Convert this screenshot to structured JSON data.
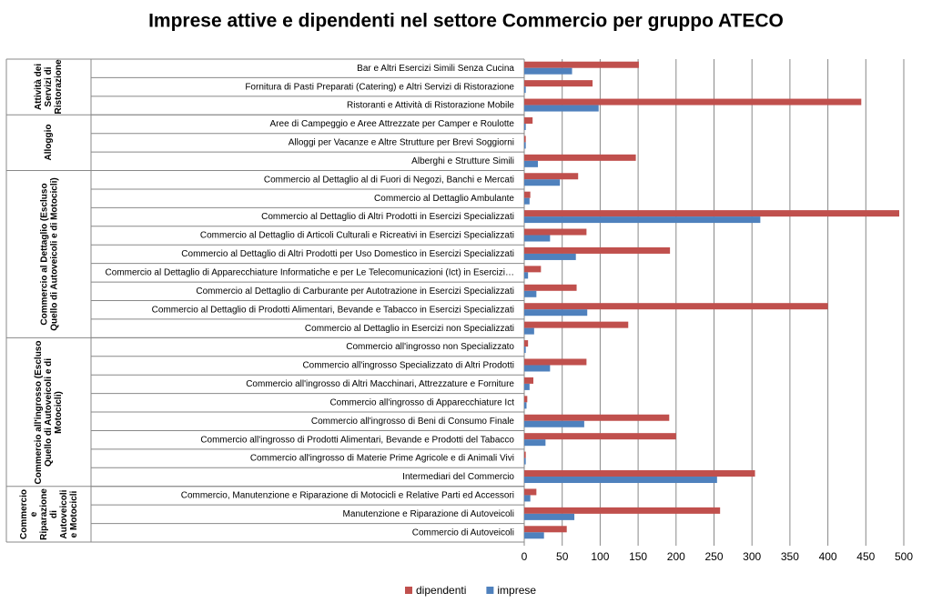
{
  "chart_data": {
    "type": "grouped-hbar",
    "title": "Imprese attive e dipendenti nel settore Commercio per gruppo ATECO",
    "categories": [
      "Bar e Altri Esercizi Simili Senza Cucina",
      "Fornitura di Pasti Preparati (Catering) e Altri Servizi di Ristorazione",
      "Ristoranti e Attività di Ristorazione Mobile",
      "Aree di Campeggio e Aree Attrezzate per Camper e Roulotte",
      "Alloggi per Vacanze e Altre Strutture per Brevi Soggiorni",
      "Alberghi e Strutture Simili",
      "Commercio al Dettaglio al di Fuori di Negozi, Banchi e Mercati",
      "Commercio al Dettaglio Ambulante",
      "Commercio al Dettaglio di Altri Prodotti in Esercizi Specializzati",
      "Commercio al Dettaglio di Articoli Culturali e Ricreativi in Esercizi Specializzati",
      "Commercio al Dettaglio di Altri Prodotti per Uso Domestico in Esercizi Specializzati",
      "Commercio al Dettaglio di Apparecchiature Informatiche e per Le Telecomunicazioni (Ict) in Esercizi…",
      "Commercio al Dettaglio di Carburante per Autotrazione in Esercizi Specializzati",
      "Commercio al Dettaglio di Prodotti Alimentari, Bevande e Tabacco in Esercizi Specializzati",
      "Commercio al Dettaglio in Esercizi non Specializzati",
      "Commercio all'ingrosso non Specializzato",
      "Commercio all'ingrosso Specializzato di Altri Prodotti",
      "Commercio all'ingrosso di Altri Macchinari, Attrezzature e Forniture",
      "Commercio all'ingrosso di Apparecchiature Ict",
      "Commercio all'ingrosso di Beni di Consumo Finale",
      "Commercio all'ingrosso di Prodotti Alimentari, Bevande e Prodotti del Tabacco",
      "Commercio all'ingrosso di Materie Prime Agricole e di Animali Vivi",
      "Intermediari del Commercio",
      "Commercio, Manutenzione e Riparazione di Motocicli e Relative Parti ed Accessori",
      "Manutenzione e Riparazione di Autoveicoli",
      "Commercio di Autoveicoli"
    ],
    "category_groups": [
      {
        "label": "Attività dei Servizi di Ristorazione",
        "size": 3
      },
      {
        "label": "Alloggio",
        "size": 3
      },
      {
        "label": "Commercio al Dettaglio (Escluso Quello di Autoveicoli e di Motocicli)",
        "size": 9
      },
      {
        "label": "Commercio all'ingrosso (Escluso Quello di Autoveicoli e di Motocicli)",
        "size": 8
      },
      {
        "label": "Commercio e Riparazione di Autoveicoli e Motocicli",
        "size": 3
      }
    ],
    "series": [
      {
        "name": "dipendenti",
        "color": "#c0504d",
        "values": [
          151,
          90,
          444,
          11,
          2,
          147,
          71,
          8,
          494,
          82,
          192,
          22,
          69,
          400,
          137,
          5,
          82,
          12,
          4,
          191,
          200,
          2,
          304,
          16,
          258,
          56
        ]
      },
      {
        "name": "imprese",
        "color": "#4f81bd",
        "values": [
          63,
          2,
          98,
          2,
          2,
          18,
          47,
          7,
          311,
          34,
          68,
          5,
          16,
          83,
          13,
          2,
          34,
          7,
          3,
          79,
          28,
          2,
          254,
          8,
          66,
          26
        ]
      }
    ],
    "xlim": [
      0,
      500
    ],
    "xticks": [
      0,
      50,
      100,
      150,
      200,
      250,
      300,
      350,
      400,
      450,
      500
    ],
    "grid": true,
    "legend": "bottom"
  }
}
